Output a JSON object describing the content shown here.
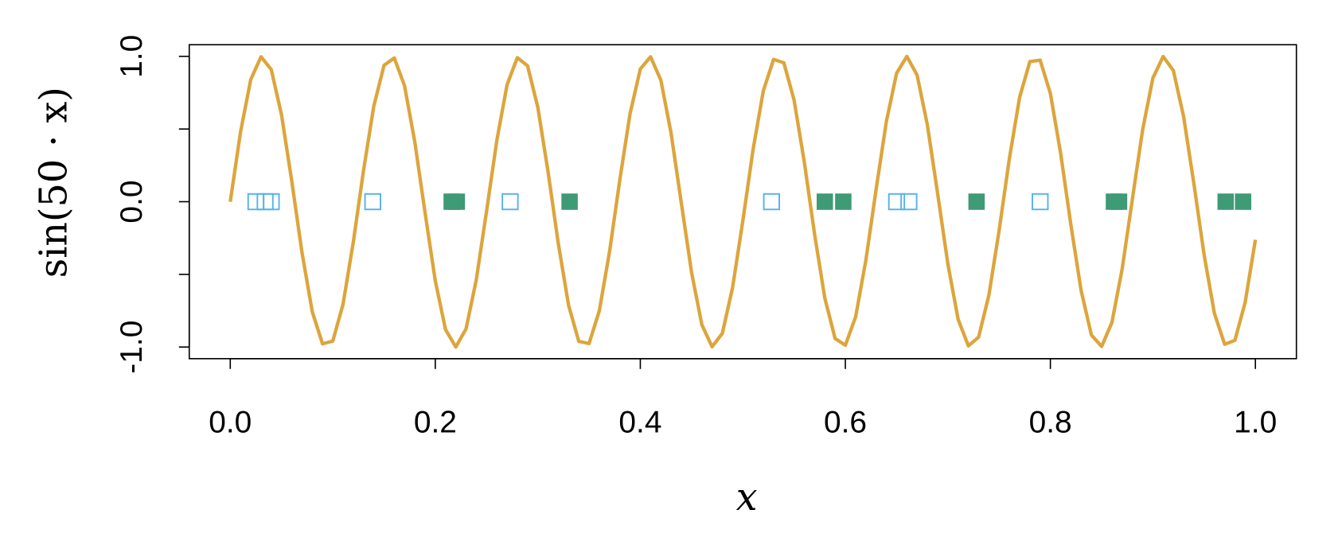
{
  "chart_data": {
    "type": "line",
    "xlabel": "x",
    "ylabel": "sin(50 · x)",
    "xlim": [
      -0.04,
      1.04
    ],
    "ylim": [
      -1.08,
      1.08
    ],
    "xticks": [
      {
        "value": 0,
        "label": "0.0"
      },
      {
        "value": 0.2,
        "label": "0.2"
      },
      {
        "value": 0.4,
        "label": "0.4"
      },
      {
        "value": 0.6,
        "label": "0.6"
      },
      {
        "value": 0.8,
        "label": "0.8"
      },
      {
        "value": 1,
        "label": "1.0"
      }
    ],
    "yticks": [
      {
        "value": -1,
        "label": "-1.0"
      },
      {
        "value": 0,
        "label": "0.0"
      },
      {
        "value": 1,
        "label": "1.0"
      }
    ],
    "yminorticks": [
      -0.5,
      0.5
    ],
    "series": [
      {
        "type": "line",
        "color": "#dca53c",
        "x": [
          0,
          0.01,
          0.02,
          0.03,
          0.04,
          0.05,
          0.06,
          0.07,
          0.08,
          0.09,
          0.1,
          0.11,
          0.12,
          0.13,
          0.14,
          0.15,
          0.16,
          0.17,
          0.18,
          0.19,
          0.2,
          0.21,
          0.22,
          0.23,
          0.24,
          0.25,
          0.26,
          0.27,
          0.28,
          0.29,
          0.3,
          0.31,
          0.32,
          0.33,
          0.34,
          0.35,
          0.36,
          0.37,
          0.38,
          0.39,
          0.4,
          0.41,
          0.42,
          0.43,
          0.44,
          0.45,
          0.46,
          0.47,
          0.48,
          0.49,
          0.5,
          0.51,
          0.52,
          0.53,
          0.54,
          0.55,
          0.56,
          0.57,
          0.58,
          0.59,
          0.6,
          0.61,
          0.62,
          0.63,
          0.64,
          0.65,
          0.66,
          0.67,
          0.68,
          0.69,
          0.7,
          0.71,
          0.72,
          0.73,
          0.74,
          0.75,
          0.76,
          0.77,
          0.78,
          0.79,
          0.8,
          0.81,
          0.82,
          0.83,
          0.84,
          0.85,
          0.86,
          0.87,
          0.88,
          0.89,
          0.9,
          0.91,
          0.92,
          0.93,
          0.94,
          0.95,
          0.96,
          0.97,
          0.98,
          0.99,
          1
        ],
        "values": [
          0,
          0.479,
          0.841,
          0.997,
          0.909,
          0.598,
          0.141,
          -0.351,
          -0.757,
          -0.978,
          -0.959,
          -0.706,
          -0.279,
          0.215,
          0.657,
          0.938,
          0.989,
          0.798,
          0.412,
          -0.075,
          -0.544,
          -0.88,
          -1,
          -0.875,
          -0.537,
          -0.066,
          0.42,
          0.804,
          0.991,
          0.935,
          0.65,
          0.206,
          -0.288,
          -0.712,
          -0.961,
          -0.976,
          -0.751,
          -0.343,
          0.15,
          0.606,
          0.913,
          0.997,
          0.837,
          0.472,
          -0.009,
          -0.487,
          -0.846,
          -0.998,
          -0.906,
          -0.591,
          -0.132,
          0.359,
          0.763,
          0.979,
          0.956,
          0.699,
          0.271,
          -0.224,
          -0.664,
          -0.941,
          -0.988,
          -0.793,
          -0.404,
          0.084,
          0.551,
          0.884,
          1,
          0.871,
          0.529,
          0.057,
          -0.428,
          -0.809,
          -0.992,
          -0.932,
          -0.644,
          -0.198,
          0.296,
          0.718,
          0.964,
          0.974,
          0.745,
          0.334,
          -0.159,
          -0.612,
          -0.917,
          -0.996,
          -0.832,
          -0.464,
          0.018,
          0.495,
          0.851,
          0.999,
          0.902,
          0.584,
          0.124,
          -0.367,
          -0.768,
          -0.981,
          -0.954,
          -0.693,
          -0.262
        ]
      },
      {
        "type": "scatter",
        "marker": "open-square",
        "color": "#56b4e9",
        "x": [
          0.025,
          0.034,
          0.04,
          0.139,
          0.273,
          0.528,
          0.65,
          0.662,
          0.79
        ],
        "values": [
          0,
          0,
          0,
          0,
          0,
          0,
          0,
          0,
          0
        ]
      },
      {
        "type": "scatter",
        "marker": "filled-square",
        "color": "#3f9a76",
        "x": [
          0.216,
          0.221,
          0.331,
          0.58,
          0.598,
          0.728,
          0.862,
          0.867,
          0.971,
          0.988
        ],
        "values": [
          0,
          0,
          0,
          0,
          0,
          0,
          0,
          0,
          0,
          0
        ]
      }
    ]
  }
}
